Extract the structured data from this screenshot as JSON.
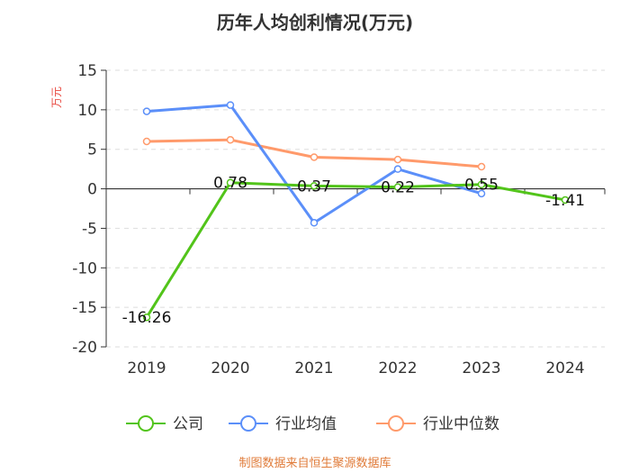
{
  "chart_data": {
    "type": "line",
    "title": "历年人均创利情况(万元)",
    "ylabel": "万元",
    "xlabel": "",
    "categories": [
      "2019",
      "2020",
      "2021",
      "2022",
      "2023",
      "2024"
    ],
    "ylim": [
      -20,
      15
    ],
    "yticks": [
      15,
      10,
      5,
      0,
      -5,
      -10,
      -15,
      -20
    ],
    "grid": true,
    "legend_position": "bottom",
    "series": [
      {
        "name": "公司",
        "color": "#52c41a",
        "values": [
          -16.26,
          0.78,
          0.37,
          0.22,
          0.55,
          -1.41
        ],
        "labels": [
          "-16.26",
          "0.78",
          "0.37",
          "0.22",
          "0.55",
          "-1.41"
        ]
      },
      {
        "name": "行业均值",
        "color": "#5b8ff9",
        "values": [
          9.8,
          10.6,
          -4.3,
          2.5,
          -0.6,
          null
        ]
      },
      {
        "name": "行业中位数",
        "color": "#ff9a6b",
        "values": [
          6.0,
          6.2,
          4.0,
          3.7,
          2.8,
          null
        ]
      }
    ],
    "source": "制图数据来自恒生聚源数据库",
    "colors": {
      "unit": "#e8453c",
      "source": "#e07b39",
      "axis": "#333333",
      "grid": "#dddddd"
    }
  }
}
